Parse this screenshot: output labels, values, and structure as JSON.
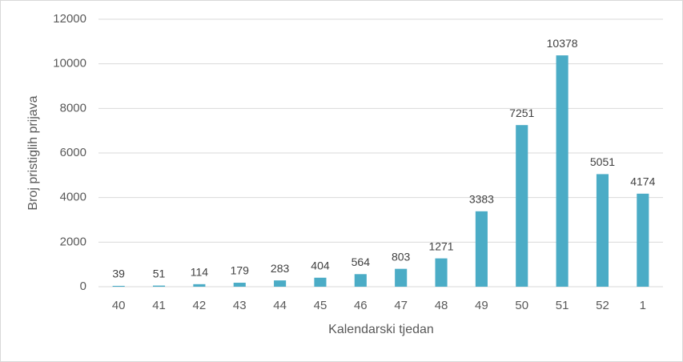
{
  "chart_data": {
    "type": "bar",
    "x_label": "Kalendarski tjedan",
    "y_label": "Broj pristiglih prijava",
    "categories": [
      "40",
      "41",
      "42",
      "43",
      "44",
      "45",
      "46",
      "47",
      "48",
      "49",
      "50",
      "51",
      "52",
      "1"
    ],
    "values": [
      39,
      51,
      114,
      179,
      283,
      404,
      564,
      803,
      1271,
      3383,
      7251,
      10378,
      5051,
      4174
    ],
    "color": "#4bacc6",
    "ylim": [
      0,
      12000
    ],
    "yticks": [
      0,
      2000,
      4000,
      6000,
      8000,
      10000,
      12000
    ],
    "grid": true
  }
}
